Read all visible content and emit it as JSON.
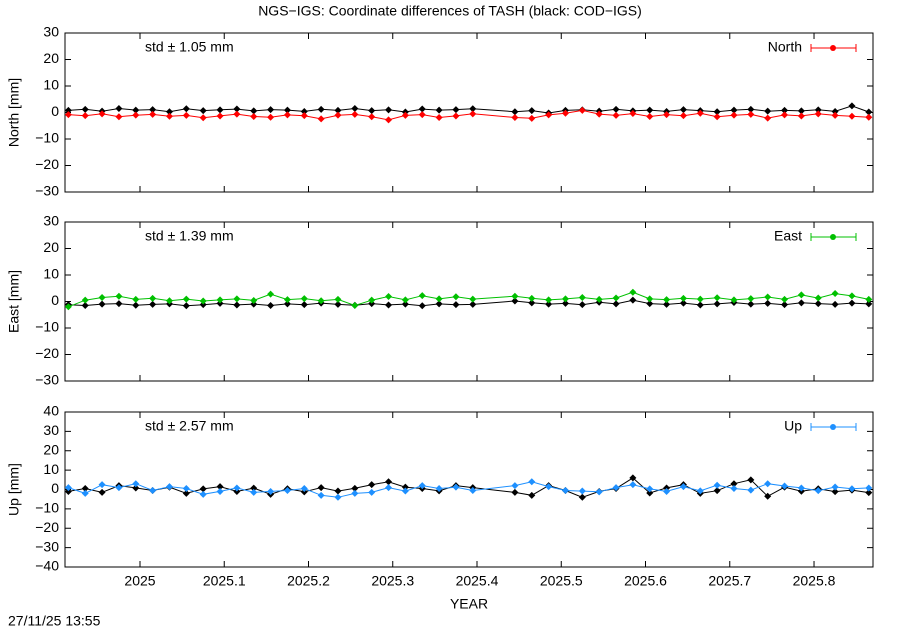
{
  "title": "NGS−IGS: Coordinate differences of TASH (black: COD−IGS)",
  "timestamp": "27/11/25 13:55",
  "chart_data": [
    {
      "type": "line",
      "ylabel": "North [mm]",
      "annotation": "std ± 1.05 mm",
      "xlim": [
        2024.911,
        2025.87
      ],
      "ylim": [
        -30,
        30
      ],
      "yticks": [
        {
          "value": -30,
          "label": "−30"
        },
        {
          "value": -20,
          "label": "−20"
        },
        {
          "value": -10,
          "label": "−10"
        },
        0,
        10,
        20,
        30
      ],
      "x": [
        2024.915,
        2024.935,
        2024.955,
        2024.975,
        2024.995,
        2025.015,
        2025.035,
        2025.055,
        2025.075,
        2025.095,
        2025.115,
        2025.135,
        2025.155,
        2025.175,
        2025.195,
        2025.215,
        2025.235,
        2025.255,
        2025.275,
        2025.295,
        2025.315,
        2025.335,
        2025.355,
        2025.375,
        2025.395,
        2025.445,
        2025.465,
        2025.485,
        2025.505,
        2025.525,
        2025.545,
        2025.565,
        2025.585,
        2025.605,
        2025.625,
        2025.645,
        2025.665,
        2025.685,
        2025.705,
        2025.725,
        2025.745,
        2025.765,
        2025.785,
        2025.805,
        2025.825,
        2025.845,
        2025.865
      ],
      "series": [
        {
          "color": "#000000",
          "values": [
            0.8,
            1.2,
            0.5,
            1.5,
            0.9,
            1.1,
            0.3,
            1.4,
            0.7,
            1.0,
            1.3,
            0.6,
            1.1,
            0.9,
            0.4,
            1.2,
            0.8,
            1.5,
            0.7,
            1.0,
            0.2,
            1.3,
            0.9,
            1.1,
            1.4,
            0.3,
            0.7,
            -0.2,
            0.8,
            1.0,
            0.5,
            1.2,
            0.6,
            0.9,
            0.4,
            1.1,
            0.7,
            0.3,
            0.9,
            1.2,
            0.5,
            0.8,
            0.6,
            1.0,
            0.4,
            2.5,
            0.2
          ]
        },
        {
          "name": "North",
          "color": "#ff0000",
          "values": [
            -0.8,
            -1.2,
            -0.5,
            -1.6,
            -1.0,
            -0.7,
            -1.4,
            -1.1,
            -2.0,
            -1.3,
            -0.6,
            -1.5,
            -1.8,
            -0.9,
            -1.2,
            -2.4,
            -1.0,
            -0.7,
            -1.6,
            -2.8,
            -1.1,
            -0.8,
            -1.9,
            -1.3,
            -0.5,
            -1.9,
            -2.2,
            -0.9,
            -0.3,
            0.8,
            -0.6,
            -1.1,
            -0.4,
            -1.5,
            -0.8,
            -1.2,
            -0.3,
            -1.6,
            -1.0,
            -0.7,
            -2.1,
            -0.9,
            -1.3,
            -0.5,
            -1.1,
            -1.4,
            -1.8
          ]
        }
      ]
    },
    {
      "type": "line",
      "ylabel": "East [mm]",
      "annotation": "std ± 1.39 mm",
      "xlim": [
        2024.911,
        2025.87
      ],
      "ylim": [
        -30,
        30
      ],
      "yticks": [
        {
          "value": -30,
          "label": "−30"
        },
        {
          "value": -20,
          "label": "−20"
        },
        {
          "value": -10,
          "label": "−10"
        },
        0,
        10,
        20,
        30
      ],
      "x": [
        2024.915,
        2024.935,
        2024.955,
        2024.975,
        2024.995,
        2025.015,
        2025.035,
        2025.055,
        2025.075,
        2025.095,
        2025.115,
        2025.135,
        2025.155,
        2025.175,
        2025.195,
        2025.215,
        2025.235,
        2025.255,
        2025.275,
        2025.295,
        2025.315,
        2025.335,
        2025.355,
        2025.375,
        2025.395,
        2025.445,
        2025.465,
        2025.485,
        2025.505,
        2025.525,
        2025.545,
        2025.565,
        2025.585,
        2025.605,
        2025.625,
        2025.645,
        2025.665,
        2025.685,
        2025.705,
        2025.725,
        2025.745,
        2025.765,
        2025.785,
        2025.805,
        2025.825,
        2025.845,
        2025.865
      ],
      "series": [
        {
          "color": "#000000",
          "values": [
            -1.2,
            -1.5,
            -1.0,
            -0.8,
            -1.4,
            -1.1,
            -0.9,
            -1.6,
            -1.2,
            -0.7,
            -1.3,
            -1.0,
            -1.5,
            -0.9,
            -1.2,
            -0.6,
            -1.1,
            -1.4,
            -0.8,
            -1.3,
            -1.0,
            -1.6,
            -0.9,
            -1.2,
            -1.1,
            0.2,
            -0.5,
            -1.0,
            -0.7,
            -1.2,
            -0.3,
            -0.9,
            0.5,
            -0.8,
            -1.1,
            -0.6,
            -1.3,
            -0.9,
            -0.4,
            -1.0,
            -0.7,
            -1.2,
            -0.5,
            -0.8,
            -1.1,
            -0.6,
            -0.9
          ]
        },
        {
          "name": "East",
          "color": "#00c000",
          "values": [
            -2.0,
            0.5,
            1.5,
            2.0,
            0.8,
            1.2,
            0.3,
            0.9,
            0.2,
            0.6,
            1.0,
            0.4,
            2.8,
            0.7,
            1.1,
            0.3,
            0.8,
            -1.5,
            0.5,
            1.9,
            0.6,
            2.2,
            1.0,
            1.8,
            0.9,
            2.0,
            1.2,
            0.6,
            1.0,
            1.5,
            0.8,
            1.3,
            3.5,
            1.0,
            0.7,
            1.2,
            0.9,
            1.4,
            0.6,
            1.1,
            1.7,
            0.8,
            2.5,
            1.3,
            3.0,
            2.1,
            0.8
          ]
        }
      ]
    },
    {
      "type": "line",
      "ylabel": "Up [mm]",
      "xlabel": "YEAR",
      "annotation": "std ± 2.57 mm",
      "xlim": [
        2024.911,
        2025.87
      ],
      "ylim": [
        -40,
        40
      ],
      "xticks": [
        2025,
        2025.1,
        2025.2,
        2025.3,
        2025.4,
        2025.5,
        2025.6,
        2025.7,
        2025.8
      ],
      "yticks": [
        {
          "value": -40,
          "label": "−40"
        },
        {
          "value": -30,
          "label": "−30"
        },
        {
          "value": -20,
          "label": "−20"
        },
        {
          "value": -10,
          "label": "−10"
        },
        0,
        10,
        20,
        30,
        40
      ],
      "x": [
        2024.915,
        2024.935,
        2024.955,
        2024.975,
        2024.995,
        2025.015,
        2025.035,
        2025.055,
        2025.075,
        2025.095,
        2025.115,
        2025.135,
        2025.155,
        2025.175,
        2025.195,
        2025.215,
        2025.235,
        2025.255,
        2025.275,
        2025.295,
        2025.315,
        2025.335,
        2025.355,
        2025.375,
        2025.395,
        2025.445,
        2025.465,
        2025.485,
        2025.505,
        2025.525,
        2025.545,
        2025.565,
        2025.585,
        2025.605,
        2025.625,
        2025.645,
        2025.665,
        2025.685,
        2025.705,
        2025.725,
        2025.745,
        2025.765,
        2025.785,
        2025.805,
        2025.825,
        2025.845,
        2025.865
      ],
      "series": [
        {
          "color": "#000000",
          "values": [
            -1,
            0.5,
            -1.5,
            2,
            0.8,
            -0.5,
            1.2,
            -2,
            0.3,
            1.5,
            -1,
            0.7,
            -2.5,
            0.4,
            -1.2,
            1,
            -0.8,
            0.6,
            2.5,
            4,
            1.2,
            0.5,
            -0.7,
            2,
            1,
            -1.5,
            -3,
            2,
            -0.5,
            -4,
            -1,
            0.5,
            6,
            -1.8,
            0.8,
            2.5,
            -2,
            -0.6,
            3,
            5,
            -3.5,
            1.2,
            -0.9,
            0.4,
            -1.1,
            -0.3,
            -1.6
          ]
        },
        {
          "name": "Up",
          "color": "#1e90ff",
          "values": [
            1,
            -2,
            2.5,
            1,
            3,
            -0.5,
            1.5,
            0.5,
            -2.5,
            -1,
            0.8,
            -1.5,
            -1,
            -0.5,
            0.5,
            -3,
            -4,
            -2,
            -1.5,
            1,
            -0.8,
            2,
            0.5,
            1.2,
            -0.5,
            2,
            4,
            1.5,
            -0.5,
            -0.8,
            -1.2,
            1,
            2.5,
            0.3,
            -1,
            1.5,
            -0.7,
            2.2,
            0.5,
            -0.3,
            3,
            1.8,
            0.8,
            -0.6,
            1.3,
            0.4,
            0.8
          ]
        }
      ]
    }
  ]
}
